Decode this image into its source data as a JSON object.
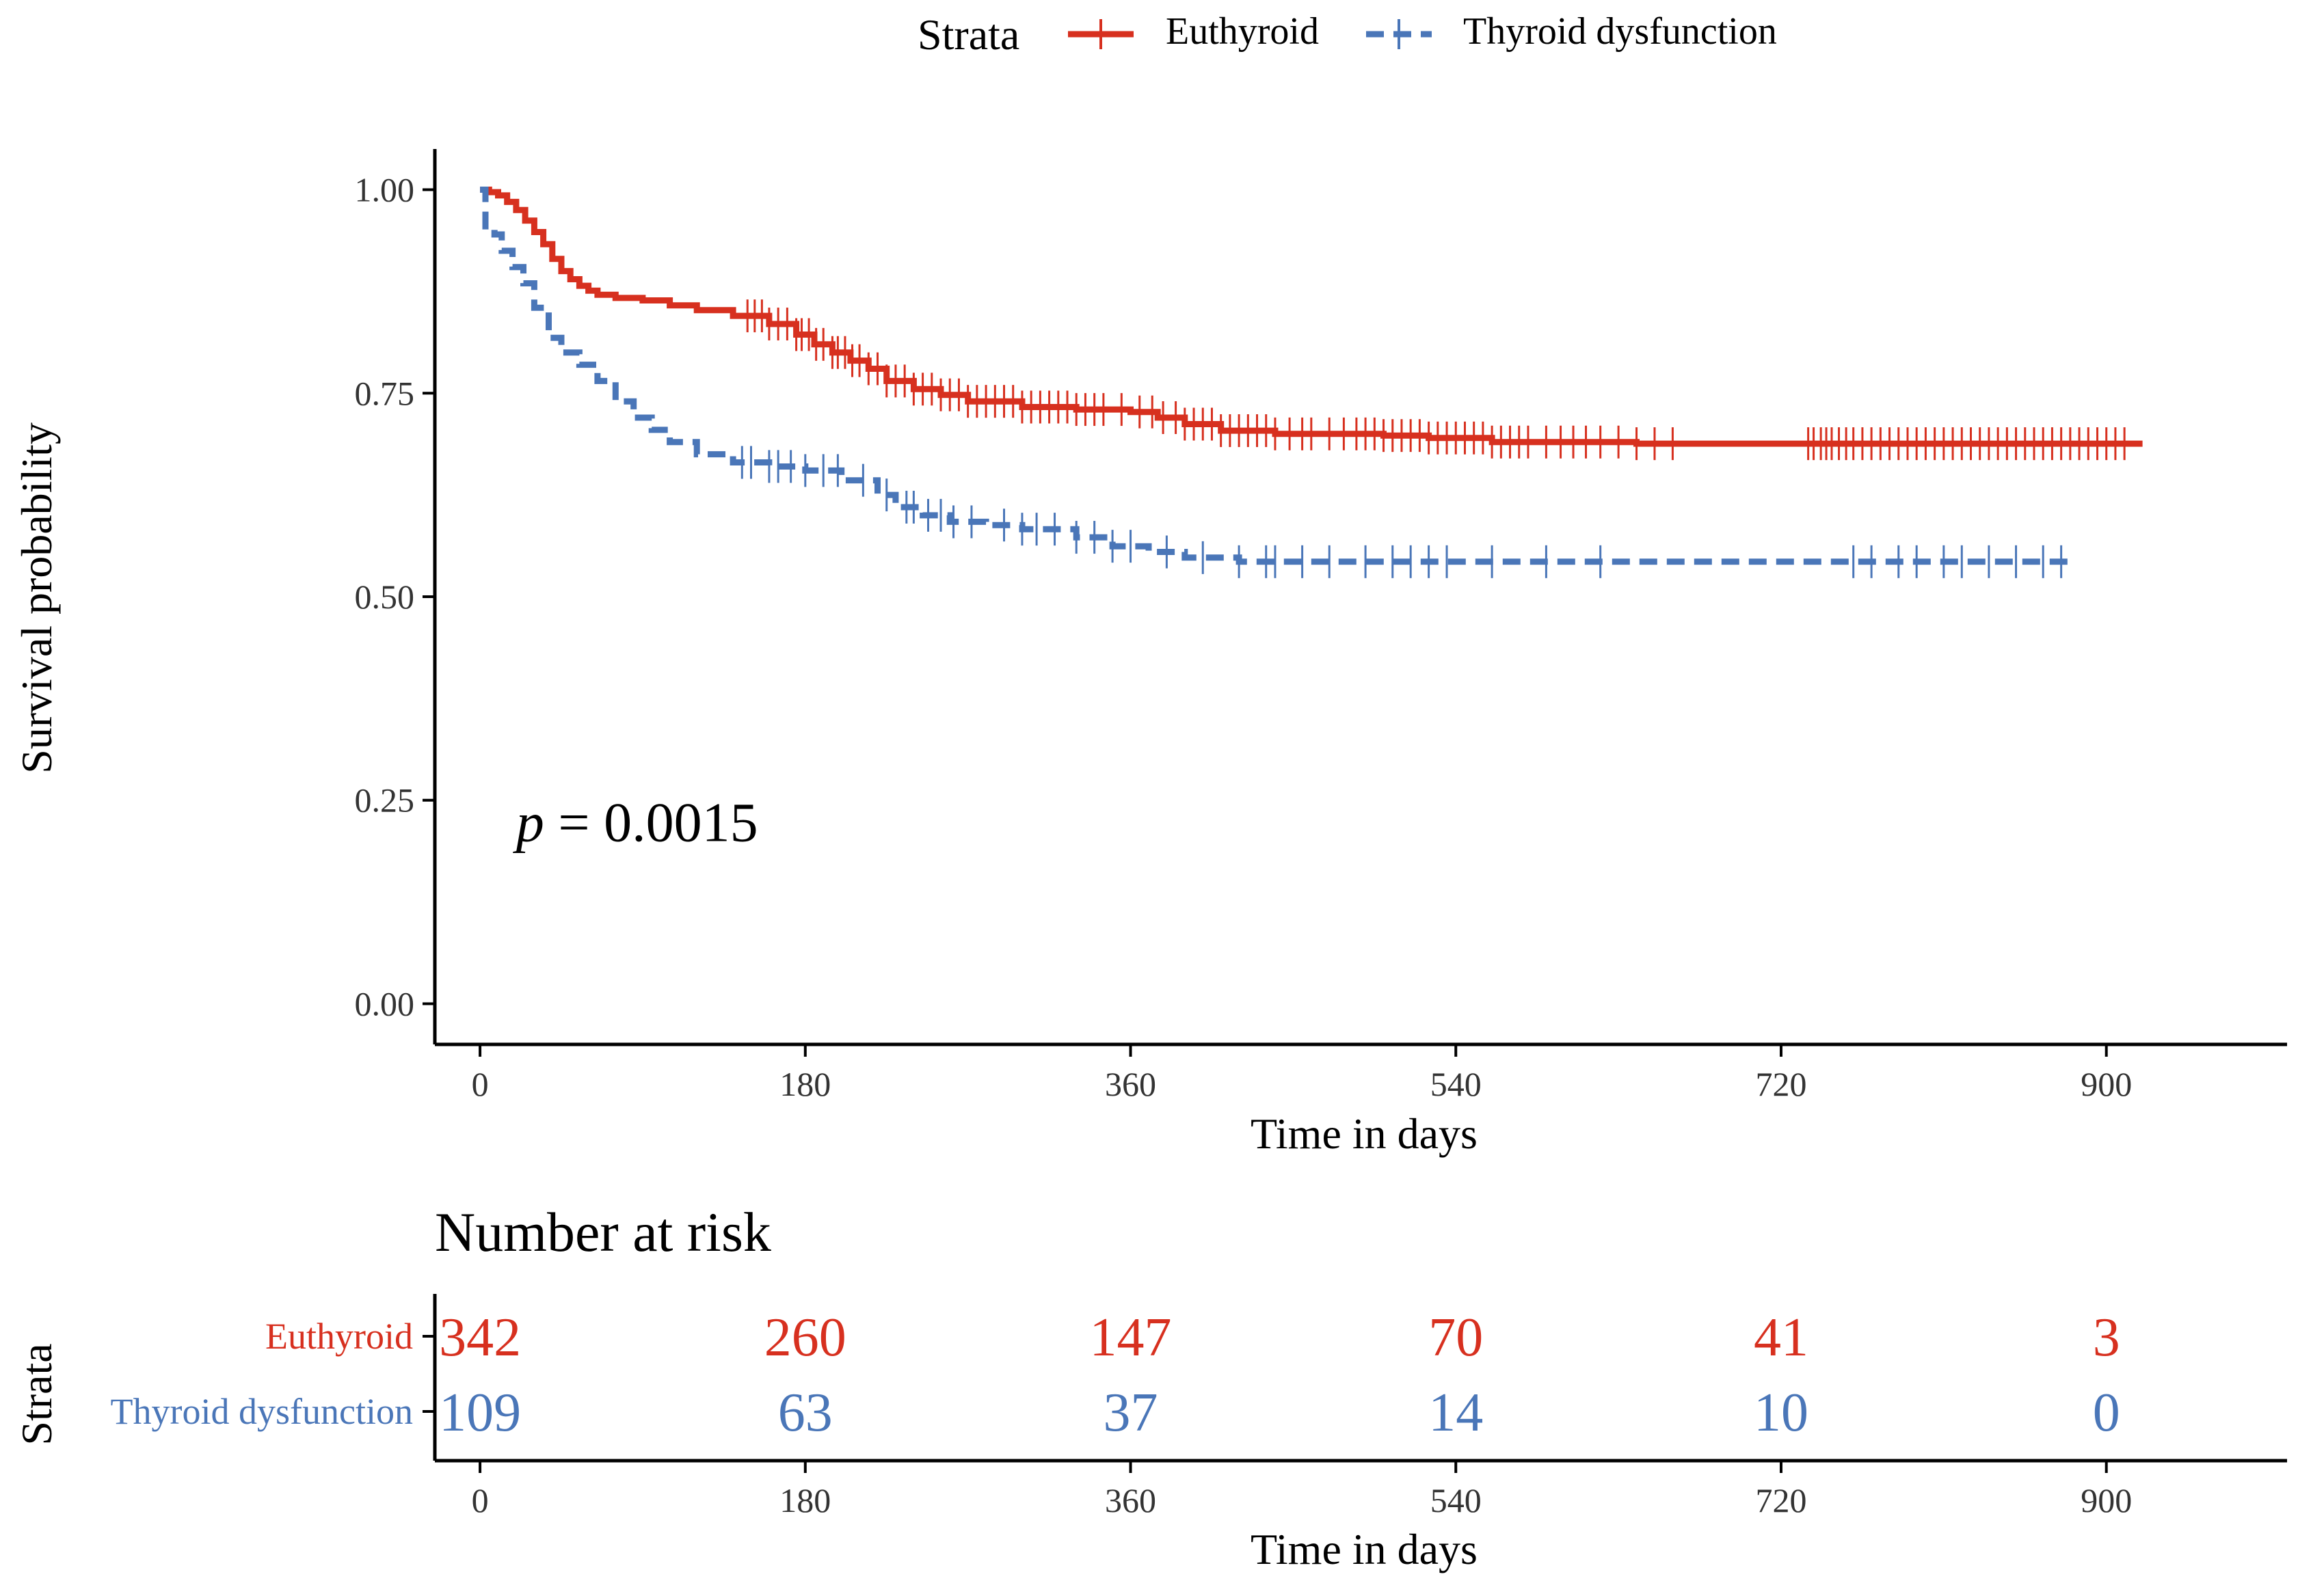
{
  "legend": {
    "title": "Strata",
    "items": [
      {
        "label": "Euthyroid",
        "color": "#d7301f",
        "dash": "solid"
      },
      {
        "label": "Thyroid dysfunction",
        "color": "#4a76b8",
        "dash": "dashed"
      }
    ]
  },
  "chart_data": [
    {
      "type": "line",
      "subtype": "kaplan-meier",
      "title": "",
      "xlabel": "Time in days",
      "ylabel": "Survival probability",
      "xlim": [
        -25,
        1000
      ],
      "ylim": [
        -0.05,
        1.05
      ],
      "x_ticks": [
        0,
        180,
        360,
        540,
        720,
        900
      ],
      "y_ticks": [
        0.0,
        0.25,
        0.5,
        0.75,
        1.0
      ],
      "y_tick_labels": [
        "0.00",
        "0.25",
        "0.50",
        "0.75",
        "1.00"
      ],
      "grid": false,
      "legend_position": "top",
      "annotation": {
        "prefix": "p",
        "text": " = 0.0015",
        "x": 20,
        "y": 0.2
      },
      "series": [
        {
          "name": "Euthyroid",
          "color": "#d7301f",
          "dash": "solid",
          "steps": [
            [
              0,
              1.0
            ],
            [
              5,
              0.997
            ],
            [
              10,
              0.993
            ],
            [
              15,
              0.985
            ],
            [
              20,
              0.975
            ],
            [
              25,
              0.962
            ],
            [
              30,
              0.948
            ],
            [
              35,
              0.933
            ],
            [
              40,
              0.915
            ],
            [
              45,
              0.9
            ],
            [
              50,
              0.89
            ],
            [
              55,
              0.882
            ],
            [
              60,
              0.876
            ],
            [
              65,
              0.871
            ],
            [
              75,
              0.867
            ],
            [
              90,
              0.864
            ],
            [
              105,
              0.858
            ],
            [
              120,
              0.852
            ],
            [
              140,
              0.845
            ],
            [
              160,
              0.835
            ],
            [
              175,
              0.822
            ],
            [
              185,
              0.81
            ],
            [
              195,
              0.8
            ],
            [
              205,
              0.79
            ],
            [
              215,
              0.78
            ],
            [
              225,
              0.765
            ],
            [
              240,
              0.755
            ],
            [
              255,
              0.748
            ],
            [
              270,
              0.74
            ],
            [
              300,
              0.733
            ],
            [
              330,
              0.73
            ],
            [
              360,
              0.727
            ],
            [
              375,
              0.72
            ],
            [
              390,
              0.712
            ],
            [
              410,
              0.704
            ],
            [
              440,
              0.7
            ],
            [
              470,
              0.7
            ],
            [
              500,
              0.698
            ],
            [
              525,
              0.695
            ],
            [
              560,
              0.69
            ],
            [
              640,
              0.688
            ],
            [
              920,
              0.688
            ]
          ],
          "censor_times": [
            148,
            152,
            156,
            160,
            165,
            170,
            175,
            178,
            182,
            186,
            190,
            195,
            198,
            202,
            206,
            210,
            215,
            220,
            225,
            230,
            235,
            240,
            245,
            250,
            255,
            260,
            265,
            270,
            275,
            280,
            285,
            290,
            295,
            300,
            305,
            310,
            315,
            320,
            325,
            330,
            335,
            340,
            345,
            355,
            365,
            372,
            378,
            385,
            390,
            395,
            400,
            405,
            410,
            415,
            420,
            425,
            430,
            435,
            440,
            448,
            455,
            460,
            470,
            478,
            485,
            490,
            495,
            500,
            505,
            510,
            515,
            520,
            525,
            530,
            535,
            540,
            545,
            550,
            555,
            560,
            565,
            570,
            575,
            580,
            590,
            598,
            605,
            612,
            620,
            630,
            640,
            650,
            660,
            735,
            738,
            742,
            745,
            748,
            752,
            756,
            760,
            765,
            770,
            775,
            780,
            785,
            790,
            795,
            800,
            805,
            810,
            815,
            820,
            825,
            830,
            835,
            840,
            845,
            850,
            855,
            860,
            865,
            870,
            875,
            880,
            885,
            890,
            895,
            900,
            905,
            910
          ]
        },
        {
          "name": "Thyroid dysfunction",
          "color": "#4a76b8",
          "dash": "dashed",
          "steps": [
            [
              0,
              1.0
            ],
            [
              3,
              0.955
            ],
            [
              8,
              0.945
            ],
            [
              12,
              0.925
            ],
            [
              18,
              0.905
            ],
            [
              24,
              0.885
            ],
            [
              30,
              0.855
            ],
            [
              38,
              0.818
            ],
            [
              45,
              0.8
            ],
            [
              55,
              0.785
            ],
            [
              65,
              0.765
            ],
            [
              75,
              0.74
            ],
            [
              85,
              0.72
            ],
            [
              95,
              0.705
            ],
            [
              105,
              0.69
            ],
            [
              120,
              0.675
            ],
            [
              140,
              0.665
            ],
            [
              160,
              0.66
            ],
            [
              180,
              0.655
            ],
            [
              200,
              0.643
            ],
            [
              220,
              0.625
            ],
            [
              230,
              0.61
            ],
            [
              245,
              0.6
            ],
            [
              260,
              0.592
            ],
            [
              280,
              0.588
            ],
            [
              300,
              0.583
            ],
            [
              330,
              0.573
            ],
            [
              350,
              0.562
            ],
            [
              370,
              0.555
            ],
            [
              390,
              0.548
            ],
            [
              420,
              0.543
            ],
            [
              880,
              0.543
            ]
          ],
          "censor_times": [
            145,
            150,
            160,
            165,
            172,
            180,
            190,
            198,
            212,
            225,
            236,
            240,
            248,
            255,
            262,
            272,
            290,
            300,
            308,
            318,
            330,
            340,
            350,
            360,
            380,
            400,
            420,
            435,
            440,
            455,
            470,
            490,
            505,
            515,
            525,
            535,
            560,
            590,
            620,
            760,
            770,
            785,
            795,
            810,
            820,
            835,
            850,
            865,
            875
          ]
        }
      ]
    },
    {
      "type": "table",
      "title": "Number at risk",
      "ylabel": "Strata",
      "xlabel": "Time in days",
      "xlim": [
        -25,
        1000
      ],
      "x_ticks": [
        0,
        180,
        360,
        540,
        720,
        900
      ],
      "columns": [
        0,
        180,
        360,
        540,
        720,
        900
      ],
      "rows": [
        {
          "label": "Euthyroid",
          "color": "#d7301f",
          "values": [
            342,
            260,
            147,
            70,
            41,
            3
          ]
        },
        {
          "label": "Thyroid dysfunction",
          "color": "#4a76b8",
          "values": [
            109,
            63,
            37,
            14,
            10,
            0
          ]
        }
      ]
    }
  ]
}
